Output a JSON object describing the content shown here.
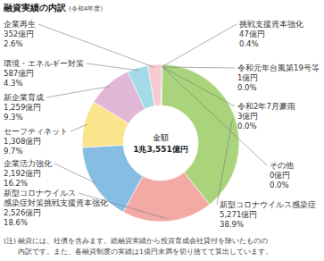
{
  "chart_data": {
    "type": "donut",
    "title": "融資実績の内訳",
    "subtitle": "(令和4年度)",
    "center_label": "金額",
    "total_label": "1兆3,551億円",
    "categories": [
      "挑戦支援資本強化",
      "令和元年台風第19号等",
      "令和2年7月豪雨",
      "その他",
      "新型コロナウイルス感染症",
      "新型コロナウイルス感染症対策挑戦支援資本強化",
      "企業活力強化",
      "セーフティネット",
      "新企業育成",
      "環境・エネルギー対策",
      "企業再生"
    ],
    "values": [
      47,
      1,
      3,
      0,
      5271,
      2526,
      2192,
      1308,
      1259,
      587,
      352
    ],
    "value_labels": [
      "47億円",
      "1億円",
      "3億円",
      "0億円",
      "5,271億円",
      "2,526億円",
      "2,192億円",
      "1,308億円",
      "1,259億円",
      "587億円",
      "352億円"
    ],
    "percents": [
      0.4,
      0.0,
      0.0,
      0.0,
      38.9,
      18.6,
      16.2,
      9.7,
      9.3,
      4.3,
      2.6
    ],
    "percent_labels": [
      "0.4%",
      "0.0%",
      "0.0%",
      "0.0%",
      "38.9%",
      "18.6%",
      "16.2%",
      "9.7%",
      "9.3%",
      "4.3%",
      "2.6%"
    ],
    "colors": [
      "#ee8a9c",
      "#8fc7a0",
      "#9fcfe0",
      "#c9c9c9",
      "#a9d47c",
      "#f4aaa4",
      "#86bde3",
      "#fbe58c",
      "#e2b6d7",
      "#a3dbe8",
      "#f6c9d2"
    ],
    "data_labels": true,
    "note": [
      "(注) 融資には、社債を含みます。総融資実績から投資育成会社貸付を除いたものの",
      "内訳です。また、各融資制度の実績は1億円未満を切り捨てて算出しています。"
    ]
  }
}
